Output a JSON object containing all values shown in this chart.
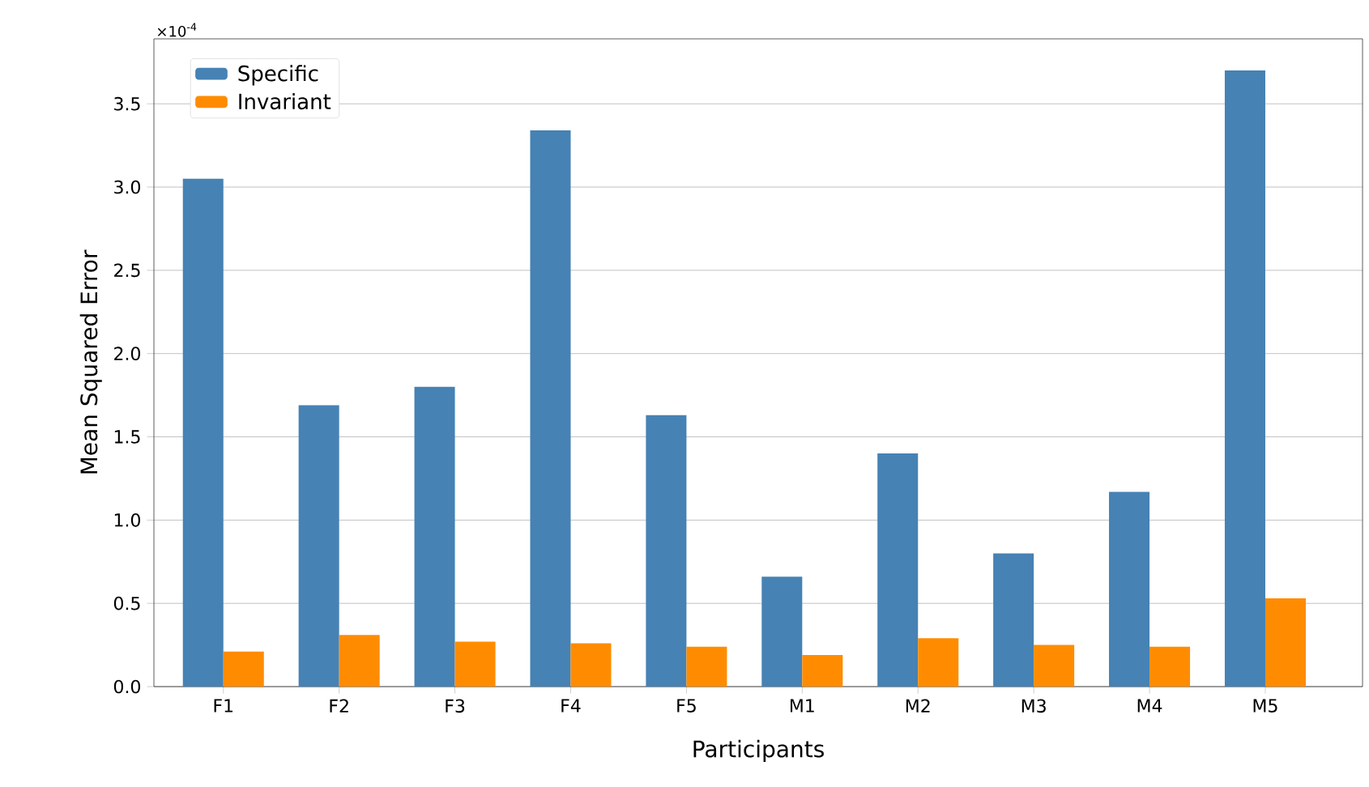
{
  "chart_data": {
    "type": "bar",
    "xlabel": "Participants",
    "ylabel": "Mean Squared Error",
    "categories": [
      "F1",
      "F2",
      "F3",
      "F4",
      "F5",
      "M1",
      "M2",
      "M3",
      "M4",
      "M5"
    ],
    "series": [
      {
        "name": "Specific",
        "color": "#4682b4",
        "values": [
          3.05,
          1.69,
          1.8,
          3.34,
          1.63,
          0.66,
          1.4,
          0.8,
          1.17,
          3.7
        ]
      },
      {
        "name": "Invariant",
        "color": "#ff8c00",
        "values": [
          0.21,
          0.31,
          0.27,
          0.26,
          0.24,
          0.19,
          0.29,
          0.25,
          0.24,
          0.53
        ]
      }
    ],
    "ylim": [
      0,
      3.89
    ],
    "yticks": [
      {
        "value": 0,
        "label": "0.0"
      },
      0.5,
      {
        "value": 1,
        "label": "1.0"
      },
      1.5,
      {
        "value": 2,
        "label": "2.0"
      },
      2.5,
      {
        "value": 3,
        "label": "3.0"
      },
      3.5
    ],
    "annotations": [
      "×10$^{-4}$"
    ],
    "grid": "y",
    "legend": "top left"
  }
}
